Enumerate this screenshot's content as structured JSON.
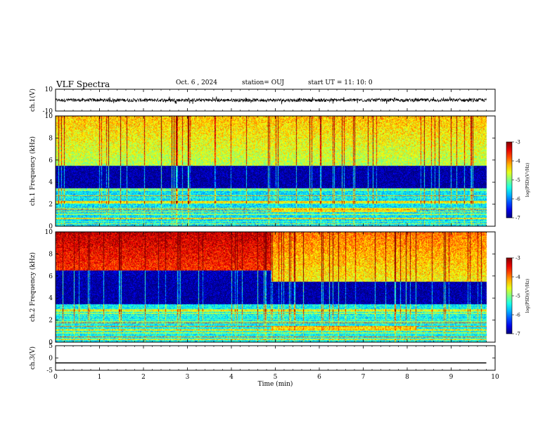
{
  "header": {
    "title": "VLF Spectra",
    "date": "Oct. 6 , 2024",
    "station": "station= OUJ",
    "start": "start UT = 11: 10: 0"
  },
  "chart_data": [
    {
      "type": "line",
      "panel": "waveform-ch1",
      "ylabel": "ch.1(V)",
      "ylim": [
        -10,
        10
      ],
      "yticks": [
        10,
        -10
      ],
      "series": [
        {
          "mean": 0.0,
          "noise_amplitude": 1.5
        }
      ]
    },
    {
      "type": "heatmap",
      "panel": "spectrogram-ch1",
      "ylabel": "ch.1 Frequency (kHz)",
      "xlim": [
        0,
        10
      ],
      "ylim": [
        0,
        10
      ],
      "yticks": [
        0,
        2,
        4,
        6,
        8,
        10
      ],
      "colorbar": {
        "label": "log(PSD)(V²/Hz)",
        "range": [
          -7,
          -3
        ],
        "ticks": [
          -3,
          -4,
          -5,
          -6,
          -7
        ]
      },
      "features": [
        {
          "description": "broadband impulsive noise (sferics) high intensity 6-10 kHz",
          "freq_khz": [
            5.5,
            10
          ],
          "time_min": [
            0,
            9.8
          ],
          "log_psd": -4.8
        },
        {
          "description": "quiet band",
          "freq_khz": [
            3.6,
            5.5
          ],
          "time_min": [
            0,
            9.8
          ],
          "log_psd": -6.9
        },
        {
          "description": "narrowband transmitter lines",
          "freq_khz": [
            0,
            3.5
          ],
          "time_min": [
            0,
            9.8
          ],
          "log_psd": -5.6
        },
        {
          "description": "enhanced emission band",
          "freq_khz": [
            1.3,
            1.7
          ],
          "time_min": [
            4.9,
            8.2
          ],
          "log_psd": -4.5
        }
      ],
      "data_end_min": 9.8
    },
    {
      "type": "heatmap",
      "panel": "spectrogram-ch2",
      "ylabel": "ch.2 Frequency (kHz)",
      "xlim": [
        0,
        10
      ],
      "ylim": [
        0,
        10
      ],
      "yticks": [
        0,
        2,
        4,
        6,
        8,
        10
      ],
      "colorbar": {
        "label": "log(PSD)(V²/Hz)",
        "range": [
          -7,
          -3
        ],
        "ticks": [
          -3,
          -4,
          -5,
          -6,
          -7
        ]
      },
      "features": [
        {
          "description": "intense broadband noise",
          "freq_khz": [
            6.5,
            10
          ],
          "time_min": [
            0,
            4.9
          ],
          "log_psd": -3.8
        },
        {
          "description": "broadband noise after level change",
          "freq_khz": [
            5.5,
            10
          ],
          "time_min": [
            4.9,
            9.8
          ],
          "log_psd": -4.5
        },
        {
          "description": "narrowband lines",
          "freq_khz": [
            0,
            3.5
          ],
          "time_min": [
            0,
            9.8
          ],
          "log_psd": -5.5
        },
        {
          "description": "enhanced emission band",
          "freq_khz": [
            1.2,
            1.5
          ],
          "time_min": [
            4.9,
            8.2
          ],
          "log_psd": -4.4
        }
      ],
      "data_end_min": 9.8
    },
    {
      "type": "line",
      "panel": "waveform-ch3",
      "ylabel": "ch.3(V)",
      "xlabel": "Time (min)",
      "xlim": [
        0,
        10
      ],
      "xticks": [
        0,
        1,
        2,
        3,
        4,
        5,
        6,
        7,
        8,
        9,
        10
      ],
      "ylim": [
        -5,
        5
      ],
      "yticks": [
        5,
        0,
        -5
      ],
      "series": [
        {
          "mean": -2.0,
          "noise_amplitude": 0.0
        }
      ]
    }
  ]
}
